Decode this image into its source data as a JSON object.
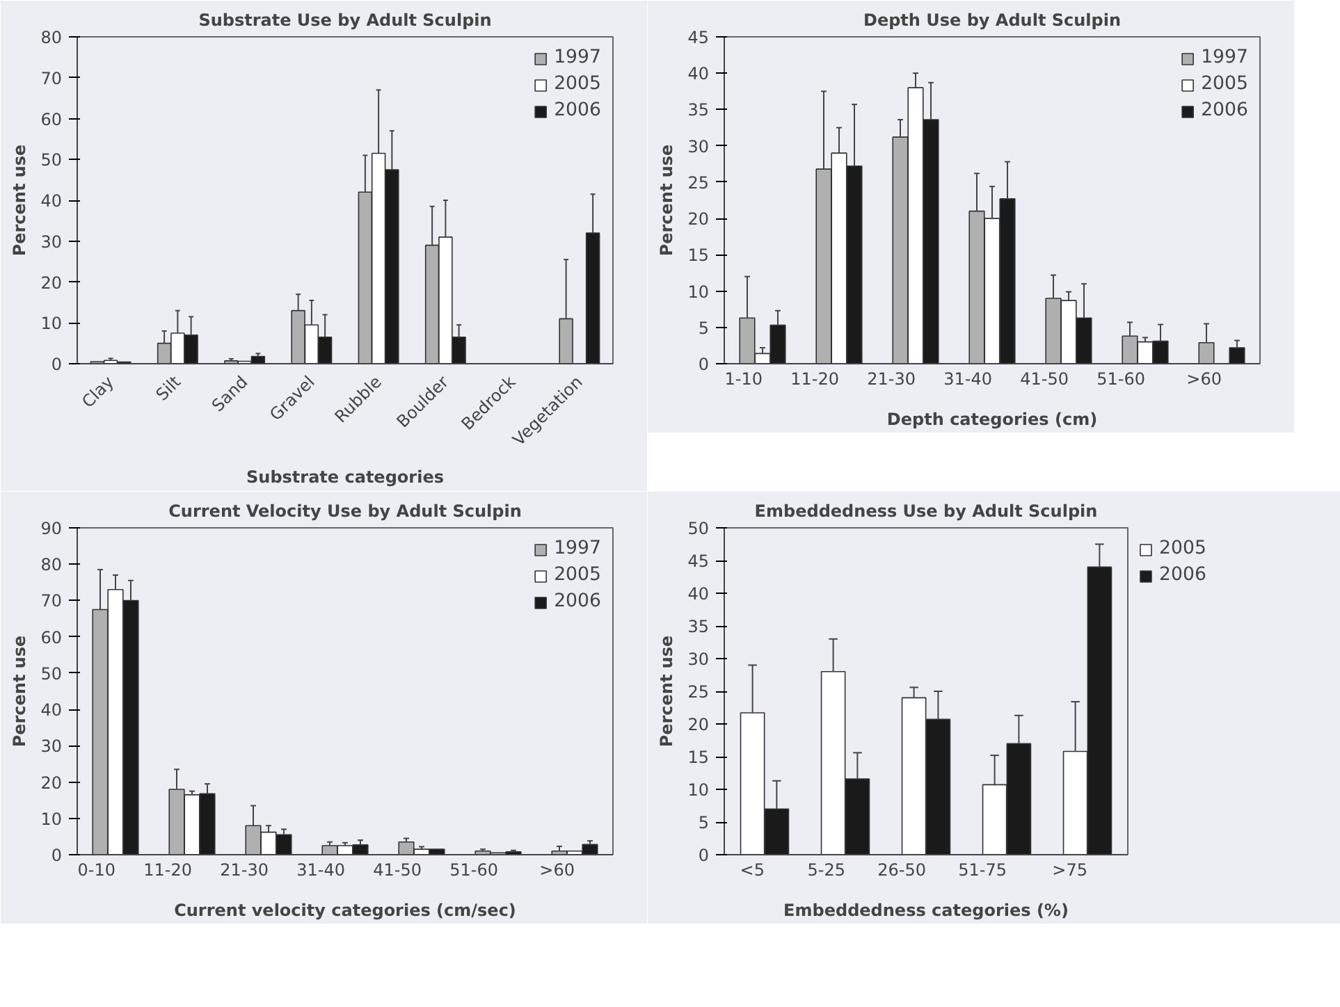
{
  "chart_data": [
    {
      "type": "bar",
      "title": "Substrate Use by Adult Sculpin",
      "xlabel": "Substrate categories",
      "ylabel": "Percent use",
      "categories": [
        "Clay",
        "Silt",
        "Sand",
        "Gravel",
        "Rubble",
        "Boulder",
        "Bedrock",
        "Vegetation"
      ],
      "ylim": [
        0,
        80
      ],
      "yticks": [
        0,
        10,
        20,
        30,
        40,
        50,
        60,
        70,
        80
      ],
      "grid": false,
      "legend": "top right",
      "series": [
        {
          "name": "1997",
          "color": "#b0b0b0",
          "values": [
            0.5,
            5,
            0.7,
            13,
            42,
            29,
            null,
            11
          ],
          "errors": [
            null,
            [
              5,
              8
            ],
            [
              0.7,
              1.2
            ],
            [
              13,
              17
            ],
            [
              42,
              51
            ],
            [
              29,
              38.5
            ],
            null,
            [
              11,
              25.5
            ]
          ]
        },
        {
          "name": "2005",
          "color": "#ffffff",
          "values": [
            0.8,
            7.5,
            0.6,
            9.5,
            51.5,
            31,
            null,
            null
          ],
          "errors": [
            [
              0.8,
              1.3
            ],
            [
              7.5,
              13
            ],
            null,
            [
              9.5,
              15.5
            ],
            [
              51.5,
              67
            ],
            [
              31,
              40
            ],
            null,
            null
          ]
        },
        {
          "name": "2006",
          "color": "#1a1a1a",
          "values": [
            0.4,
            7,
            1.8,
            6.5,
            47.5,
            6.5,
            null,
            32
          ],
          "errors": [
            null,
            [
              7,
              11.5
            ],
            [
              1.8,
              2.5
            ],
            [
              6.5,
              12
            ],
            [
              47.5,
              57
            ],
            [
              6.5,
              9.5
            ],
            null,
            [
              32,
              41.5
            ]
          ]
        }
      ]
    },
    {
      "type": "bar",
      "title": "Depth Use by Adult Sculpin",
      "xlabel": "Depth categories (cm)",
      "ylabel": "Percent use",
      "categories": [
        "1-10",
        "11-20",
        "21-30",
        "31-40",
        "41-50",
        "51-60",
        ">60"
      ],
      "ylim": [
        0,
        45
      ],
      "yticks": [
        0,
        5,
        10,
        15,
        20,
        25,
        30,
        35,
        40,
        45
      ],
      "grid": false,
      "legend": "top right",
      "series": [
        {
          "name": "1997",
          "color": "#b0b0b0",
          "values": [
            6.3,
            26.8,
            31.2,
            21,
            9,
            3.8,
            2.9
          ],
          "errors": [
            [
              6.3,
              12
            ],
            [
              26.8,
              37.5
            ],
            [
              31.2,
              33.6
            ],
            [
              21,
              26.2
            ],
            [
              9,
              12.2
            ],
            [
              3.8,
              5.7
            ],
            [
              2.9,
              5.5
            ]
          ]
        },
        {
          "name": "2005",
          "color": "#ffffff",
          "values": [
            1.4,
            29,
            38,
            20,
            8.7,
            3,
            null
          ],
          "errors": [
            [
              1.4,
              2.2
            ],
            [
              29,
              32.5
            ],
            [
              38,
              40
            ],
            [
              20,
              24.4
            ],
            [
              8.7,
              9.9
            ],
            [
              3,
              3.6
            ],
            null
          ]
        },
        {
          "name": "2006",
          "color": "#1a1a1a",
          "values": [
            5.3,
            27.2,
            33.6,
            22.7,
            6.3,
            3.1,
            2.2
          ],
          "errors": [
            [
              5.3,
              7.3
            ],
            [
              27.2,
              35.7
            ],
            [
              33.6,
              38.7
            ],
            [
              22.7,
              27.8
            ],
            [
              6.3,
              11
            ],
            [
              3.1,
              5.4
            ],
            [
              2.2,
              3.2
            ]
          ]
        }
      ]
    },
    {
      "type": "bar",
      "title": "Current Velocity Use by Adult Sculpin",
      "xlabel": "Current velocity categories (cm/sec)",
      "ylabel": "Percent use",
      "categories": [
        "0-10",
        "11-20",
        "21-30",
        "31-40",
        "41-50",
        "51-60",
        ">60"
      ],
      "ylim": [
        0,
        90
      ],
      "yticks": [
        0,
        10,
        20,
        30,
        40,
        50,
        60,
        70,
        80,
        90
      ],
      "grid": false,
      "legend": "top right",
      "series": [
        {
          "name": "1997",
          "color": "#b0b0b0",
          "values": [
            67.5,
            18,
            8,
            2.5,
            3.5,
            1,
            1
          ],
          "errors": [
            [
              67.5,
              78.5
            ],
            [
              18,
              23.5
            ],
            [
              8,
              13.5
            ],
            [
              2.5,
              3.5
            ],
            [
              3.5,
              4.5
            ],
            [
              1,
              1.5
            ],
            [
              1,
              2.3
            ]
          ]
        },
        {
          "name": "2005",
          "color": "#ffffff",
          "values": [
            73,
            16.5,
            6.2,
            2.5,
            1.5,
            0.5,
            1
          ],
          "errors": [
            [
              73,
              77
            ],
            [
              16.5,
              17.5
            ],
            [
              6.2,
              8
            ],
            [
              2.5,
              3.3
            ],
            [
              1.5,
              2.2
            ],
            null,
            null
          ]
        },
        {
          "name": "2006",
          "color": "#1a1a1a",
          "values": [
            70,
            16.8,
            5.5,
            2.7,
            1.5,
            0.8,
            2.8
          ],
          "errors": [
            [
              70,
              75.5
            ],
            [
              16.8,
              19.5
            ],
            [
              5.5,
              7
            ],
            [
              2.7,
              4
            ],
            null,
            [
              0.8,
              1.2
            ],
            [
              2.8,
              3.8
            ]
          ]
        }
      ]
    },
    {
      "type": "bar",
      "title": "Embeddedness Use by Adult Sculpin",
      "xlabel": "Embeddedness categories (%)",
      "ylabel": "Percent use",
      "categories": [
        "<5",
        "5-25",
        "26-50",
        "51-75",
        ">75"
      ],
      "ylim": [
        0,
        50
      ],
      "yticks": [
        0,
        5,
        10,
        15,
        20,
        25,
        30,
        35,
        40,
        45,
        50
      ],
      "grid": false,
      "legend": "top right",
      "series": [
        {
          "name": "2005",
          "color": "#ffffff",
          "values": [
            21.7,
            28,
            24,
            10.7,
            15.8
          ],
          "errors": [
            [
              21.7,
              29
            ],
            [
              28,
              33
            ],
            [
              24,
              25.6
            ],
            [
              10.7,
              15.2
            ],
            [
              15.8,
              23.4
            ]
          ]
        },
        {
          "name": "2006",
          "color": "#1a1a1a",
          "values": [
            7,
            11.6,
            20.7,
            17,
            44
          ],
          "errors": [
            [
              7,
              11.3
            ],
            [
              11.6,
              15.6
            ],
            [
              20.7,
              25
            ],
            [
              17,
              21.3
            ],
            [
              44,
              47.5
            ]
          ]
        }
      ]
    }
  ]
}
